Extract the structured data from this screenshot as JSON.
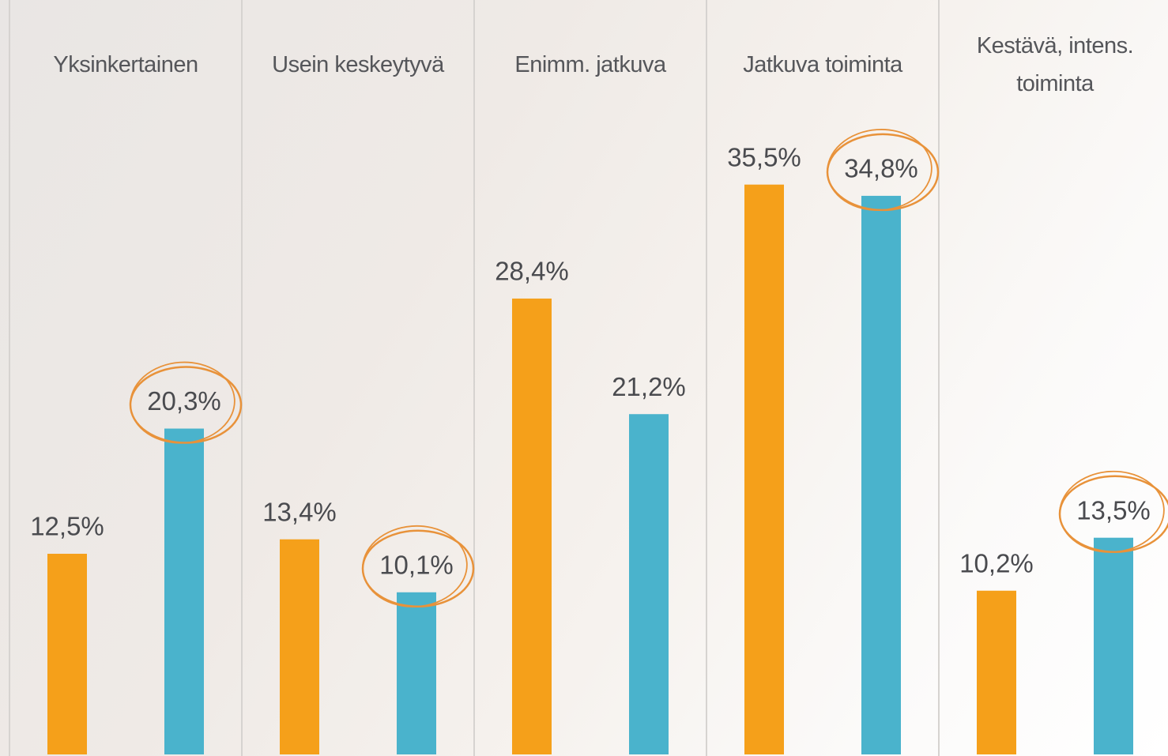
{
  "chart_data": {
    "type": "bar",
    "categories": [
      "Yksinkertainen",
      "Usein keskeytyvä",
      "Enimm. jatkuva",
      "Jatkuva toiminta",
      "Kestävä, intens. toiminta"
    ],
    "series": [
      {
        "color": "#f5a01a",
        "values": [
          12.5,
          13.4,
          28.4,
          35.5,
          10.2
        ],
        "value_labels": [
          "12,5%",
          "13,4%",
          "28,4%",
          "35,5%",
          "10,2%"
        ]
      },
      {
        "color": "#4ab3cc",
        "values": [
          20.3,
          10.1,
          21.2,
          34.8,
          13.5
        ],
        "value_labels": [
          "20,3%",
          "10,1%",
          "21,2%",
          "34,8%",
          "13,5%"
        ],
        "circled": [
          true,
          true,
          false,
          true,
          true
        ]
      }
    ],
    "ylim": [
      0,
      47
    ]
  }
}
